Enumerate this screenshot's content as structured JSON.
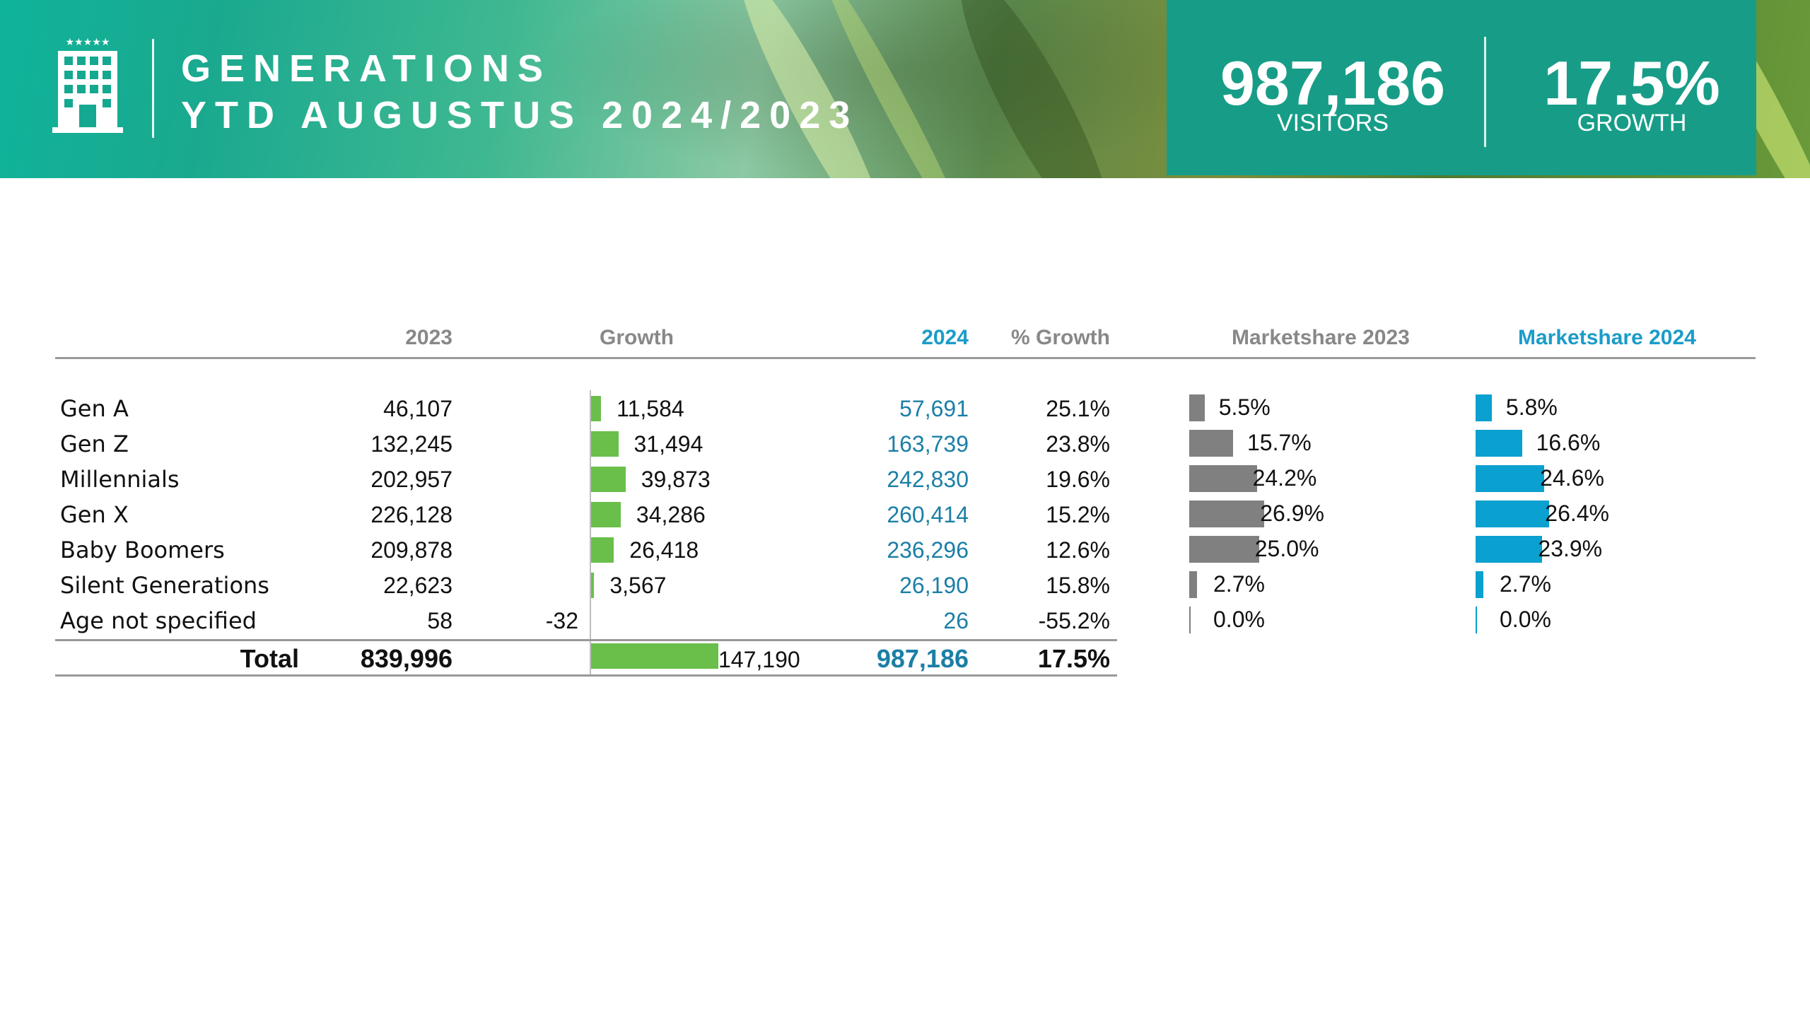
{
  "header": {
    "title_line1": "GENERATIONS",
    "title_line2": "YTD AUGUSTUS 2024/2023",
    "kpi_visitors_value": "987,186",
    "kpi_visitors_label": "VISITORS",
    "kpi_growth_value": "17.5%",
    "kpi_growth_label": "GROWTH",
    "icon": "hotel-building-five-stars-icon"
  },
  "table": {
    "columns": {
      "c2023": "2023",
      "growth": "Growth",
      "c2024": "2024",
      "pct_growth": "% Growth",
      "ms2023": "Marketshare 2023",
      "ms2024": "Marketshare 2024"
    },
    "rows": [
      {
        "label": "Gen A",
        "v2023": "46,107",
        "growth": "11,584",
        "v2024": "57,691",
        "pct": "25.1%",
        "ms2023": "5.5%",
        "ms2024": "5.8%"
      },
      {
        "label": "Gen Z",
        "v2023": "132,245",
        "growth": "31,494",
        "v2024": "163,739",
        "pct": "23.8%",
        "ms2023": "15.7%",
        "ms2024": "16.6%"
      },
      {
        "label": "Millennials",
        "v2023": "202,957",
        "growth": "39,873",
        "v2024": "242,830",
        "pct": "19.6%",
        "ms2023": "24.2%",
        "ms2024": "24.6%"
      },
      {
        "label": "Gen X",
        "v2023": "226,128",
        "growth": "34,286",
        "v2024": "260,414",
        "pct": "15.2%",
        "ms2023": "26.9%",
        "ms2024": "26.4%"
      },
      {
        "label": "Baby Boomers",
        "v2023": "209,878",
        "growth": "26,418",
        "v2024": "236,296",
        "pct": "12.6%",
        "ms2023": "25.0%",
        "ms2024": "23.9%"
      },
      {
        "label": "Silent Generations",
        "v2023": "22,623",
        "growth": "3,567",
        "v2024": "26,190",
        "pct": "15.8%",
        "ms2023": "2.7%",
        "ms2024": "2.7%"
      },
      {
        "label": "Age not specified",
        "v2023": "58",
        "growth": "-32",
        "v2024": "26",
        "pct": "-55.2%",
        "ms2023": "0.0%",
        "ms2024": "0.0%"
      }
    ],
    "total": {
      "label": "Total",
      "v2023": "839,996",
      "growth": "147,190",
      "v2024": "987,186",
      "pct": "17.5%"
    }
  },
  "chart_data": {
    "type": "table",
    "title": "GENERATIONS YTD AUGUSTUS 2024/2023",
    "categories": [
      "Gen A",
      "Gen Z",
      "Millennials",
      "Gen X",
      "Baby Boomers",
      "Silent Generations",
      "Age not specified"
    ],
    "series": [
      {
        "name": "2023",
        "values": [
          46107,
          132245,
          202957,
          226128,
          209878,
          22623,
          58
        ]
      },
      {
        "name": "Growth",
        "values": [
          11584,
          31494,
          39873,
          34286,
          26418,
          3567,
          -32
        ]
      },
      {
        "name": "2024",
        "values": [
          57691,
          163739,
          242830,
          260414,
          236296,
          26190,
          26
        ]
      },
      {
        "name": "% Growth",
        "values": [
          25.1,
          23.8,
          19.6,
          15.2,
          12.6,
          15.8,
          -55.2
        ]
      },
      {
        "name": "Marketshare 2023",
        "values": [
          5.5,
          15.7,
          24.2,
          26.9,
          25.0,
          2.7,
          0.0
        ]
      },
      {
        "name": "Marketshare 2024",
        "values": [
          5.8,
          16.6,
          24.6,
          26.4,
          23.9,
          2.7,
          0.0
        ]
      }
    ],
    "totals": {
      "2023": 839996,
      "Growth": 147190,
      "2024": 987186,
      "% Growth": 17.5
    },
    "colors": {
      "growth": "#6abf4b",
      "ms2023": "#808080",
      "ms2024": "#0aa0cf",
      "accent_2024": "#1b7fa6"
    }
  }
}
